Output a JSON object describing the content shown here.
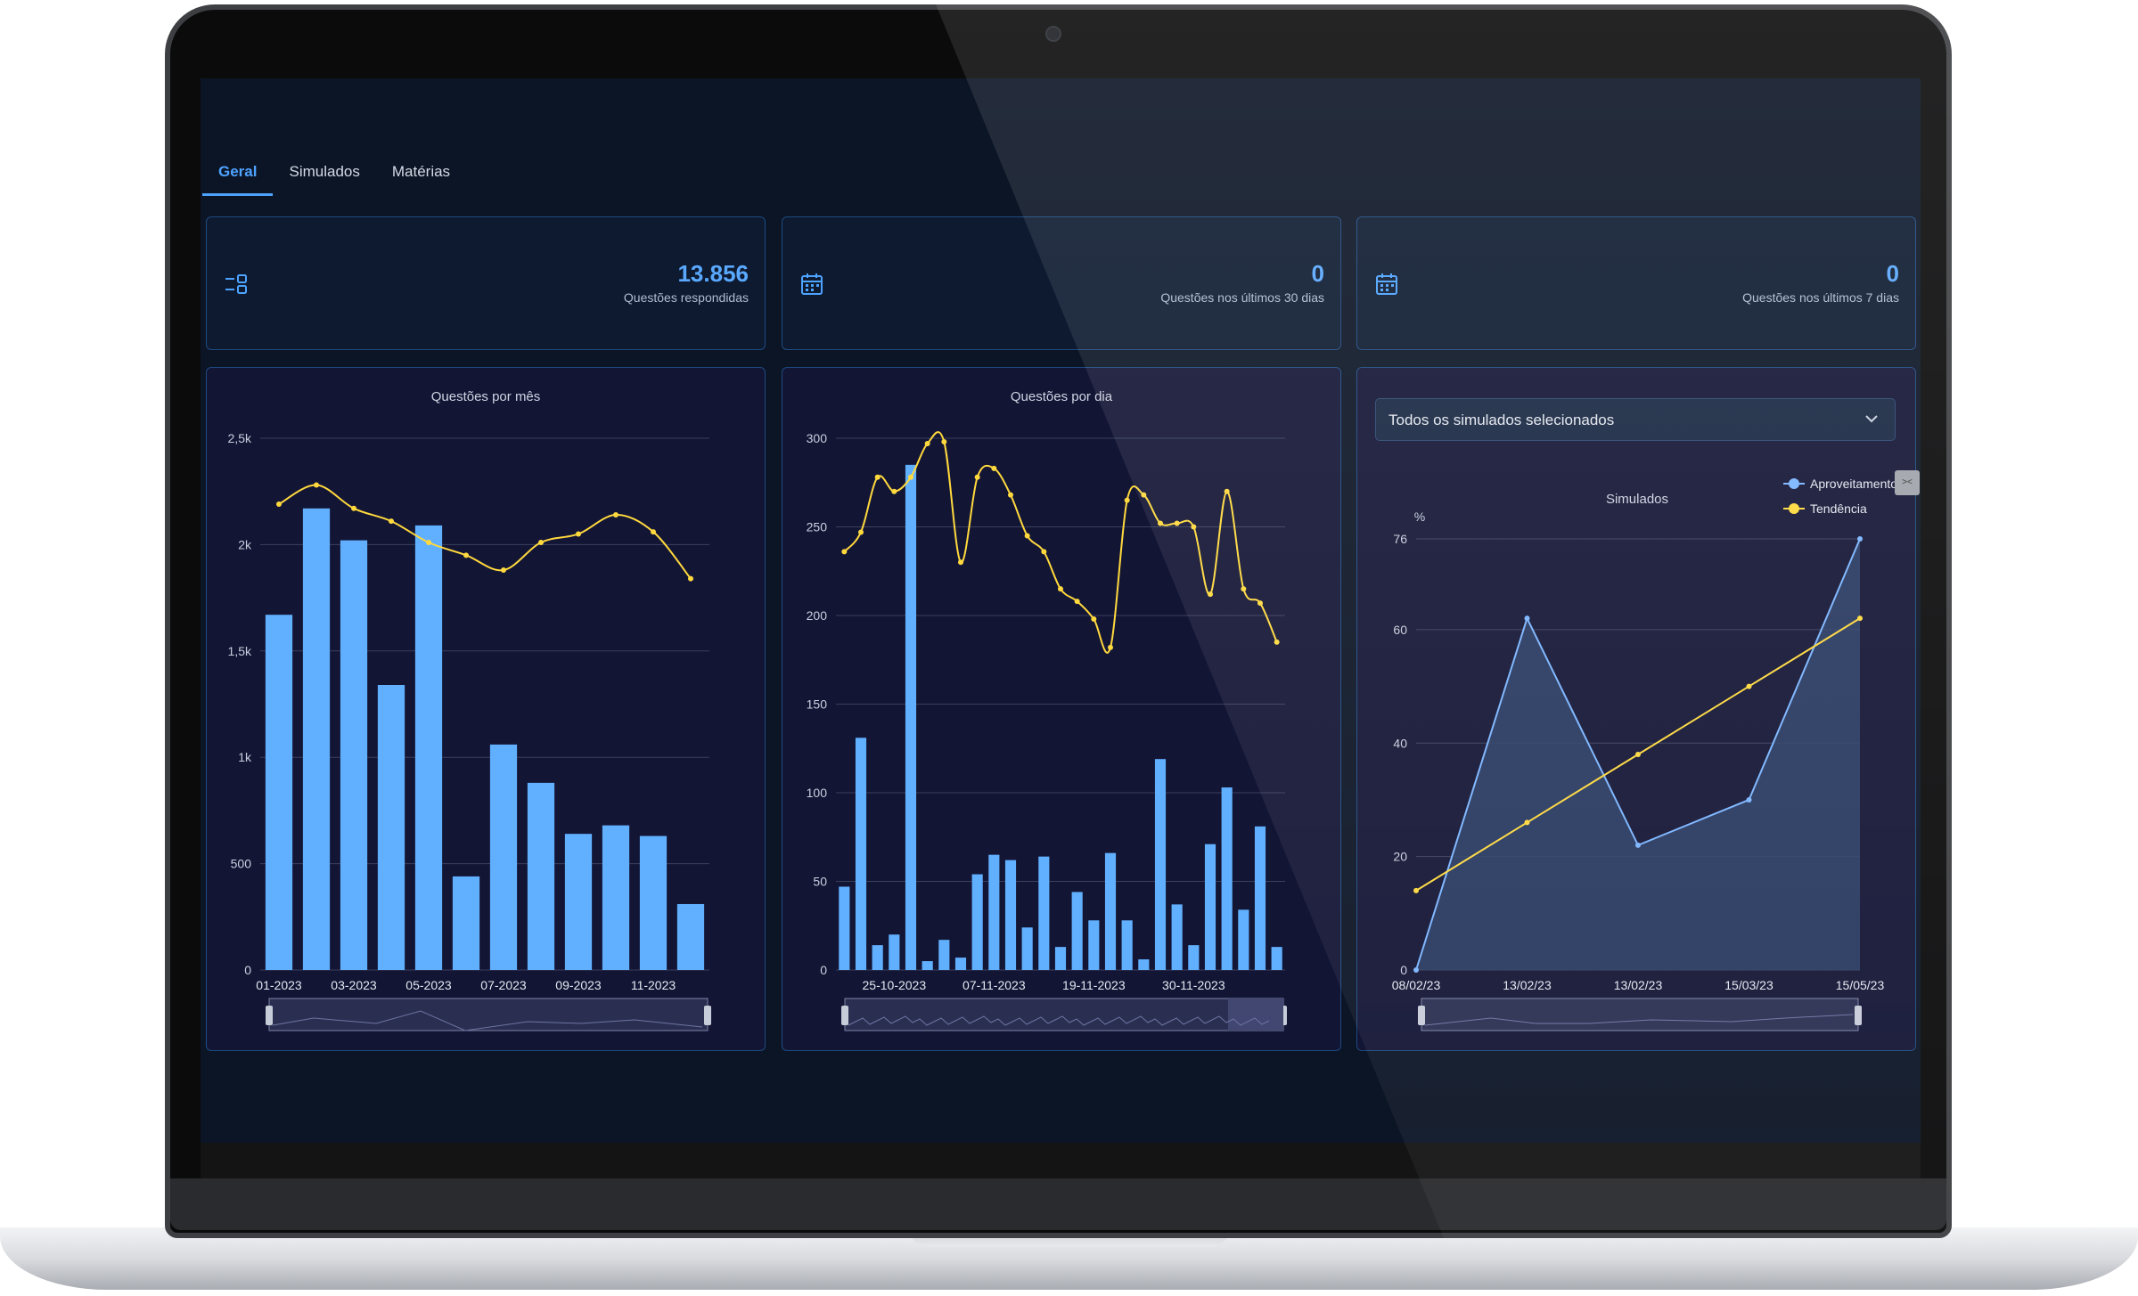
{
  "tabs": [
    "Geral",
    "Simulados",
    "Matérias"
  ],
  "stats": [
    {
      "value": "13.856",
      "label": "Questões respondidas",
      "icon": "list-icon"
    },
    {
      "value": "0",
      "label": "Questões nos últimos 30 dias",
      "icon": "calendar-icon"
    },
    {
      "value": "0",
      "label": "Questões nos últimos 7 dias",
      "icon": "calendar-icon"
    }
  ],
  "dropdown": {
    "value": "Todos os simulados selecionados"
  },
  "colors": {
    "bar": "#61b0ff",
    "trend": "#ffd93d",
    "accent": "#4da3ff",
    "area": "#2d4067"
  },
  "chart_data": [
    {
      "type": "bar",
      "title": "Questões por mês",
      "ylim": [
        0,
        2500
      ],
      "yticks": [
        "0",
        "500",
        "1k",
        "1,5k",
        "2k",
        "2,5k"
      ],
      "categories": [
        "01-2023",
        "02-2023",
        "03-2023",
        "04-2023",
        "05-2023",
        "06-2023",
        "07-2023",
        "08-2023",
        "09-2023",
        "10-2023",
        "11-2023",
        "12-2023"
      ],
      "xtick_labels": [
        "01-2023",
        "03-2023",
        "05-2023",
        "07-2023",
        "09-2023",
        "11-2023"
      ],
      "series": [
        {
          "values": [
            1670,
            2170,
            2020,
            1340,
            2090,
            440,
            1060,
            880,
            640,
            680,
            630,
            310
          ]
        },
        {
          "values": [
            2190,
            2280,
            2170,
            2110,
            2010,
            1950,
            1880,
            2010,
            2050,
            2140,
            2060,
            1840
          ]
        }
      ]
    },
    {
      "type": "bar",
      "title": "Questões por dia",
      "ylim": [
        0,
        300
      ],
      "yticks": [
        "0",
        "50",
        "100",
        "150",
        "200",
        "250",
        "300"
      ],
      "xtick_labels": [
        "25-10-2023",
        "07-11-2023",
        "19-11-2023",
        "30-11-2023"
      ],
      "series": [
        {
          "values": [
            47,
            131,
            14,
            20,
            285,
            5,
            17,
            7,
            54,
            65,
            62,
            24,
            64,
            13,
            44,
            28,
            66,
            28,
            6,
            119,
            37,
            14,
            71,
            103,
            34,
            81,
            13
          ]
        },
        {
          "values": [
            236,
            247,
            278,
            270,
            278,
            297,
            298,
            230,
            278,
            283,
            268,
            245,
            236,
            215,
            208,
            198,
            182,
            265,
            268,
            252,
            252,
            250,
            212,
            270,
            215,
            207,
            185
          ]
        }
      ]
    },
    {
      "type": "line",
      "title": "Simulados",
      "ylabel": "%",
      "ylim": [
        0,
        76
      ],
      "yticks": [
        "0",
        "20",
        "40",
        "60",
        "76"
      ],
      "categories": [
        "08/02/23",
        "13/02/23",
        "13/02/23",
        "15/03/23",
        "15/05/23"
      ],
      "series": [
        {
          "name": "Aproveitamento",
          "values": [
            0,
            62,
            22,
            30,
            76
          ]
        },
        {
          "name": "Tendência",
          "values": [
            14,
            26,
            38,
            50,
            62
          ]
        }
      ]
    }
  ]
}
